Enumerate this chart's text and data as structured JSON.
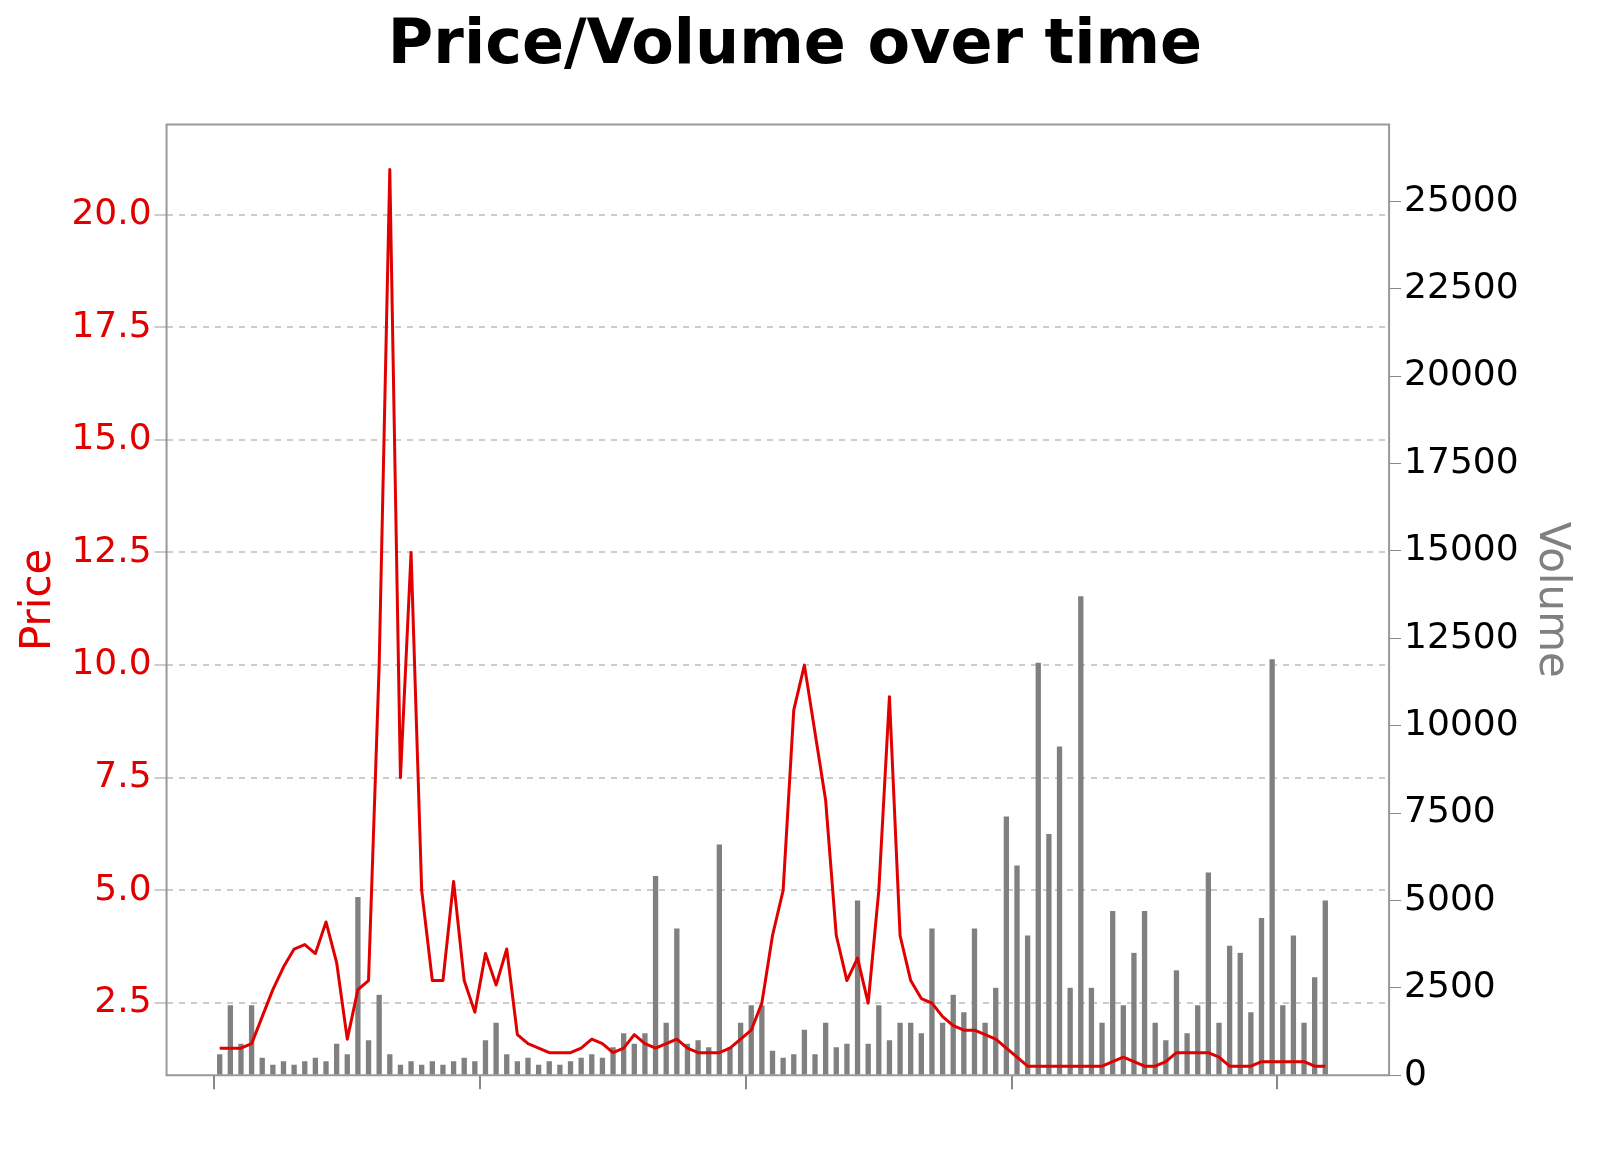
{
  "chart_data": {
    "type": "line",
    "title": "Price/Volume over time",
    "ylabel": "Price",
    "y2label": "Volume",
    "categories": [
      null,
      null,
      null,
      null,
      null,
      null,
      null,
      null,
      null,
      null,
      null,
      null,
      null,
      null,
      null,
      null,
      null,
      null,
      null,
      null,
      null,
      null,
      null,
      null,
      null,
      null,
      null,
      null,
      null,
      null,
      null,
      null,
      null,
      null,
      null,
      null,
      null,
      null,
      null,
      null,
      null,
      null,
      null,
      null,
      null,
      null,
      null,
      null,
      null,
      null,
      null,
      null,
      null,
      null,
      null,
      null,
      null,
      null,
      null,
      null,
      null,
      null,
      null,
      null,
      null,
      null,
      null,
      null,
      null,
      null,
      null,
      null,
      null,
      null,
      null,
      null,
      null,
      null,
      null,
      null,
      null,
      null,
      null,
      null,
      null,
      null,
      null,
      null,
      null,
      null,
      null,
      null,
      null,
      null,
      null,
      null,
      null,
      null,
      null,
      null,
      null,
      null,
      null,
      null,
      null,
      null,
      null,
      null,
      null,
      null,
      null,
      null,
      null,
      null,
      null,
      null
    ],
    "ylim": [
      0.9,
      22
    ],
    "yticks": [
      {
        "value": 2.5,
        "label": "2.5"
      },
      {
        "value": 5,
        "label": "5.0"
      },
      {
        "value": 7.5,
        "label": "7.5"
      },
      {
        "value": 10,
        "label": "10.0"
      },
      {
        "value": 12.5,
        "label": "12.5"
      },
      {
        "value": 15,
        "label": "15.0"
      },
      {
        "value": 17.5,
        "label": "17.5"
      },
      {
        "value": 20,
        "label": "20.0"
      }
    ],
    "y2lim": [
      0,
      27200
    ],
    "y2ticks": [
      0,
      2500,
      5000,
      7500,
      10000,
      12500,
      15000,
      17500,
      20000,
      22500,
      25000
    ],
    "grid": "y",
    "series": [
      {
        "type": "bar",
        "axis": "y2",
        "color": "#808080",
        "values": [
          null,
          null,
          null,
          null,
          null,
          600,
          2000,
          900,
          2000,
          500,
          300,
          400,
          300,
          400,
          500,
          400,
          900,
          600,
          5100,
          1000,
          2300,
          600,
          300,
          400,
          300,
          400,
          300,
          400,
          500,
          400,
          1000,
          1500,
          600,
          400,
          500,
          300,
          400,
          300,
          400,
          500,
          600,
          500,
          800,
          1200,
          900,
          1200,
          5700,
          1500,
          4200,
          900,
          1000,
          800,
          6600,
          800,
          1500,
          2000,
          2000,
          700,
          500,
          600,
          1300,
          600,
          1500,
          800,
          900,
          5000,
          900,
          2000,
          1000,
          1500,
          1500,
          1200,
          4200,
          1500,
          2300,
          1800,
          4200,
          1500,
          2500,
          7400,
          6000,
          4000,
          11800,
          6900,
          9400,
          2500,
          13700,
          2500,
          1500,
          4700,
          2000,
          3500,
          4700,
          1500,
          1000,
          3000,
          1200,
          2000,
          5800,
          1500,
          3700,
          3500,
          1800,
          4500,
          11900,
          2000,
          4000,
          1500,
          2800,
          5000,
          null,
          null,
          null,
          null,
          null,
          null
        ]
      },
      {
        "axis": "y",
        "color": "#e00000",
        "values": [
          null,
          null,
          null,
          null,
          null,
          1.5,
          1.5,
          1.5,
          1.6,
          2.2,
          2.8,
          3.3,
          3.7,
          3.8,
          3.6,
          4.3,
          3.4,
          1.7,
          2.8,
          3.0,
          10.0,
          21.0,
          7.5,
          12.5,
          5.0,
          3.0,
          3.0,
          5.2,
          3.0,
          2.3,
          3.6,
          2.9,
          3.7,
          1.8,
          1.6,
          1.5,
          1.4,
          1.4,
          1.4,
          1.5,
          1.7,
          1.6,
          1.4,
          1.5,
          1.8,
          1.6,
          1.5,
          1.6,
          1.7,
          1.5,
          1.4,
          1.4,
          1.4,
          1.5,
          1.7,
          1.9,
          2.5,
          4.0,
          5.0,
          9.0,
          10.0,
          8.5,
          7.0,
          4.0,
          3.0,
          3.5,
          2.5,
          5.0,
          9.3,
          4.0,
          3.0,
          2.6,
          2.5,
          2.2,
          2.0,
          1.9,
          1.9,
          1.8,
          1.7,
          1.5,
          1.3,
          1.1,
          1.1,
          1.1,
          1.1,
          1.1,
          1.1,
          1.1,
          1.1,
          1.2,
          1.3,
          1.2,
          1.1,
          1.1,
          1.2,
          1.4,
          1.4,
          1.4,
          1.4,
          1.3,
          1.1,
          1.1,
          1.1,
          1.2,
          1.2,
          1.2,
          1.2,
          1.2,
          1.1,
          1.1,
          null,
          null,
          null,
          null,
          null,
          null
        ]
      }
    ]
  }
}
